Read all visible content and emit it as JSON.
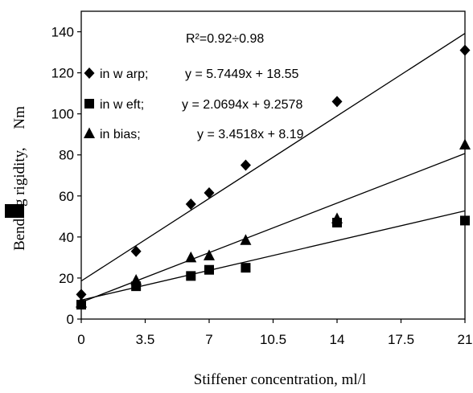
{
  "chart_data": {
    "type": "scatter",
    "xlabel": "Stiffener concentration, ml/l",
    "ylabel_prefix": "Bending rigidity, ",
    "ylabel_suffix": "Nm",
    "xlim": [
      0,
      21
    ],
    "ylim": [
      0,
      150
    ],
    "x_ticks": [
      0,
      3.5,
      7,
      10.5,
      14,
      17.5,
      21
    ],
    "x_tick_labels": [
      "0",
      "3.5",
      "7",
      "10.5",
      "14",
      "17.5",
      "21"
    ],
    "y_ticks": [
      0,
      20,
      40,
      60,
      80,
      100,
      120,
      140
    ],
    "y_tick_labels": [
      "0",
      "20",
      "40",
      "60",
      "80",
      "100",
      "120",
      "140"
    ],
    "grid": false,
    "annotation": "R²=0.92÷0.98",
    "series": [
      {
        "name": "in w arp;",
        "equation": "y = 5.7449x + 18.55",
        "marker": "diamond",
        "x": [
          0,
          3,
          6,
          7,
          9,
          14,
          21
        ],
        "y": [
          12,
          33,
          56,
          61.5,
          75,
          106,
          131
        ],
        "trendline": {
          "slope": 5.7449,
          "intercept": 18.55
        }
      },
      {
        "name": "in w eft;",
        "equation": "y = 2.0694x + 9.2578",
        "marker": "square",
        "x": [
          0,
          3,
          6,
          7,
          9,
          14,
          21
        ],
        "y": [
          7,
          16,
          21,
          24,
          25,
          47,
          48
        ],
        "trendline": {
          "slope": 2.0694,
          "intercept": 9.2578
        }
      },
      {
        "name": "in bias;",
        "equation": "y = 3.4518x + 8.19",
        "marker": "triangle",
        "x": [
          0,
          3,
          6,
          7,
          9,
          14,
          21
        ],
        "y": [
          8,
          19,
          30,
          31,
          38.5,
          49,
          85
        ],
        "trendline": {
          "slope": 3.4518,
          "intercept": 8.19
        }
      }
    ],
    "colors": {
      "ink": "#000000",
      "background": "#ffffff"
    }
  }
}
